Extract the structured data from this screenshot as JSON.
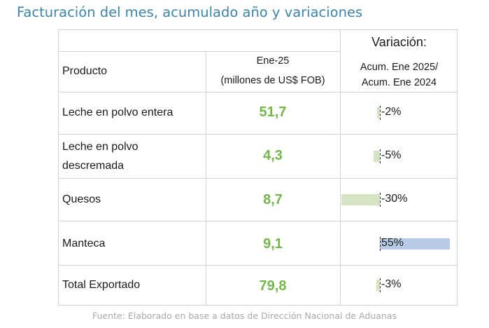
{
  "title": "Facturación del mes, acumulado año y variaciones",
  "header": {
    "producto": "Producto",
    "period": "Ene-25",
    "units": "(millones de US$ FOB)",
    "variacion": "Variación:",
    "variacion_line1": "Acum. Ene 2025/",
    "variacion_line2": "Acum. Ene 2024"
  },
  "rows": [
    {
      "name_line1": "Leche en polvo entera",
      "name_line2": "",
      "value": "51,7",
      "pct_label": "-2%",
      "pct": -2
    },
    {
      "name_line1": "Leche en polvo",
      "name_line2": "descremada",
      "value": "4,3",
      "pct_label": "-5%",
      "pct": -5
    },
    {
      "name_line1": "Quesos",
      "name_line2": "",
      "value": "8,7",
      "pct_label": "-30%",
      "pct": -30
    },
    {
      "name_line1": "Manteca",
      "name_line2": "",
      "value": "9,1",
      "pct_label": "55%",
      "pct": 55
    },
    {
      "name_line1": "Total Exportado",
      "name_line2": "",
      "value": "79,8",
      "pct_label": "-3%",
      "pct": -3
    }
  ],
  "colors": {
    "value": "#74b64a",
    "neg_bar": "#d6e4c3",
    "pos_bar": "#b8cbe6",
    "title": "#3e84a8"
  },
  "footer": "Fuente: Elaborado en base a datos de Dirección Nacional de Aduanas"
}
